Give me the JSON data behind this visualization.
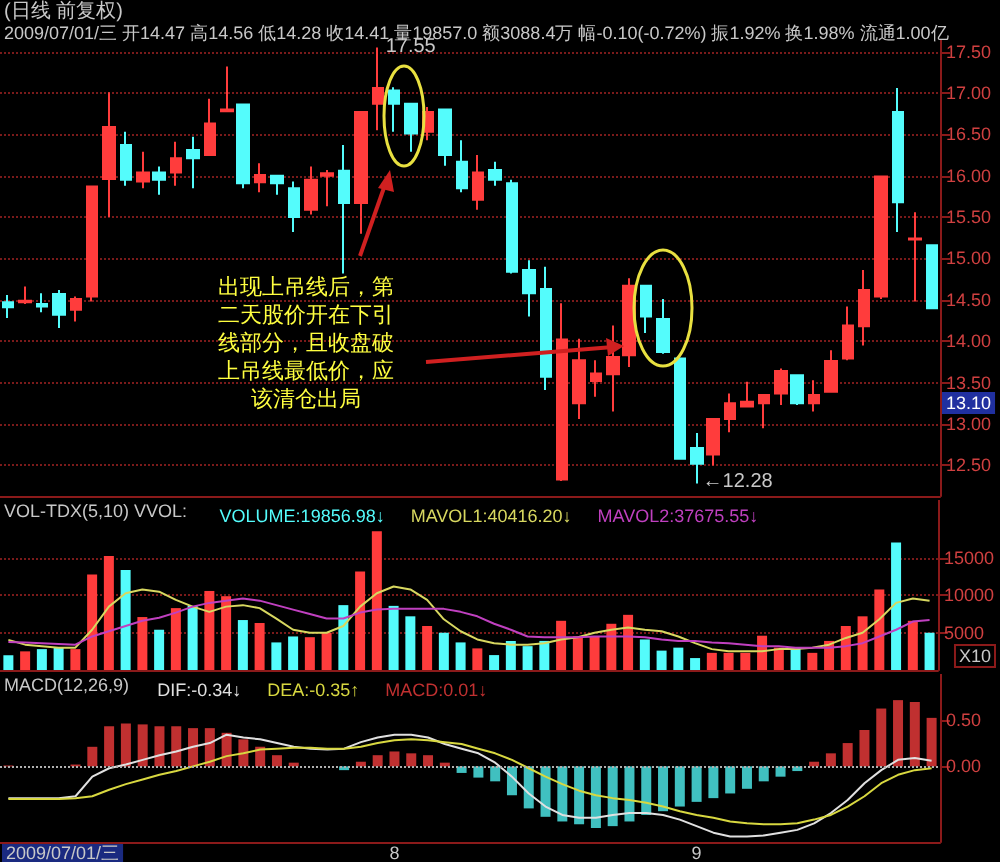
{
  "chart_data": [
    {
      "type": "candlestick",
      "title": "(日线 前复权)",
      "subtitle": "2009/07/01/三 开14.47 高14.56 低14.28 收14.41 量19857.0 额3088.4万 幅-0.10(-0.72%) 振1.92% 换1.98% 流通1.00亿",
      "categories": [
        null,
        null,
        null,
        null,
        null,
        null,
        null,
        null,
        null,
        null,
        null,
        null,
        null,
        null,
        null,
        null,
        null,
        null,
        null,
        null,
        null,
        null,
        null,
        "8",
        null,
        null,
        null,
        null,
        null,
        null,
        null,
        null,
        null,
        null,
        null,
        null,
        null,
        null,
        null,
        null,
        null,
        "9",
        null,
        null,
        null,
        null,
        null,
        null,
        null,
        null,
        null,
        null,
        null,
        null,
        null,
        null
      ],
      "ohlc": [
        [
          14.47,
          14.56,
          14.28,
          14.41
        ],
        [
          14.47,
          14.66,
          14.45,
          14.49
        ],
        [
          14.45,
          14.58,
          14.35,
          14.42
        ],
        [
          14.57,
          14.62,
          14.16,
          14.32
        ],
        [
          14.38,
          14.54,
          14.24,
          14.51
        ],
        [
          14.54,
          15.88,
          14.48,
          15.87
        ],
        [
          15.96,
          17.01,
          15.5,
          16.59
        ],
        [
          16.37,
          16.53,
          15.88,
          15.95
        ],
        [
          15.93,
          16.29,
          15.85,
          16.04
        ],
        [
          16.04,
          16.11,
          15.77,
          15.95
        ],
        [
          16.04,
          16.41,
          15.88,
          16.21
        ],
        [
          16.31,
          16.47,
          15.85,
          16.21
        ],
        [
          16.25,
          16.93,
          16.25,
          16.63
        ],
        [
          16.78,
          17.32,
          16.77,
          16.8
        ],
        [
          16.86,
          16.86,
          15.85,
          15.91
        ],
        [
          15.92,
          16.15,
          15.8,
          16.01
        ],
        [
          16.0,
          16.0,
          15.77,
          15.91
        ],
        [
          15.85,
          15.93,
          15.32,
          15.5
        ],
        [
          15.59,
          16.11,
          15.53,
          15.95
        ],
        [
          16.0,
          16.07,
          15.63,
          16.03
        ],
        [
          16.06,
          16.37,
          14.82,
          15.67
        ],
        [
          15.67,
          16.77,
          15.3,
          16.77
        ],
        [
          16.87,
          17.55,
          16.55,
          17.06
        ],
        [
          17.03,
          17.07,
          16.53,
          16.87
        ],
        [
          16.87,
          16.87,
          16.29,
          16.51
        ],
        [
          16.53,
          16.83,
          16.43,
          16.77
        ],
        [
          16.8,
          16.8,
          16.12,
          16.25
        ],
        [
          16.17,
          16.43,
          15.8,
          15.85
        ],
        [
          15.71,
          16.25,
          15.59,
          16.04
        ],
        [
          16.07,
          16.17,
          15.88,
          15.95
        ],
        [
          15.91,
          15.95,
          14.82,
          14.84
        ],
        [
          14.86,
          14.98,
          14.3,
          14.58
        ],
        [
          14.63,
          14.9,
          13.41,
          13.57
        ],
        [
          12.33,
          14.46,
          12.31,
          14.02
        ],
        [
          13.25,
          14.03,
          13.06,
          13.77
        ],
        [
          13.52,
          13.77,
          13.33,
          13.61
        ],
        [
          13.6,
          14.19,
          13.15,
          13.81
        ],
        [
          13.83,
          14.76,
          13.69,
          14.67
        ],
        [
          14.67,
          14.67,
          14.1,
          14.3
        ],
        [
          14.27,
          14.51,
          13.85,
          13.87
        ],
        [
          13.79,
          13.79,
          12.57,
          12.58
        ],
        [
          12.71,
          12.89,
          12.28,
          12.52
        ],
        [
          12.63,
          13.06,
          12.5,
          13.06
        ],
        [
          13.06,
          13.37,
          12.9,
          13.25
        ],
        [
          13.21,
          13.51,
          13.2,
          13.27
        ],
        [
          13.25,
          13.35,
          12.95,
          13.35
        ],
        [
          13.37,
          13.67,
          13.23,
          13.64
        ],
        [
          13.59,
          13.59,
          13.23,
          13.25
        ],
        [
          13.25,
          13.53,
          13.15,
          13.35
        ],
        [
          13.39,
          13.89,
          13.39,
          13.76
        ],
        [
          13.79,
          14.42,
          13.77,
          14.19
        ],
        [
          14.18,
          14.86,
          13.95,
          14.62
        ],
        [
          14.54,
          15.99,
          14.51,
          15.99
        ],
        [
          16.77,
          17.06,
          15.32,
          15.68
        ],
        [
          15.23,
          15.56,
          14.48,
          15.24
        ],
        [
          15.16,
          15.16,
          14.4,
          14.4
        ]
      ],
      "colors": [
        "#54fcfc",
        "#ff3c3c",
        "#54fcfc",
        "#54fcfc",
        "#ff3c3c",
        "#ff3c3c",
        "#ff3c3c",
        "#54fcfc",
        "#ff3c3c",
        "#54fcfc",
        "#ff3c3c",
        "#54fcfc",
        "#ff3c3c",
        "#ff3c3c",
        "#54fcfc",
        "#ff3c3c",
        "#54fcfc",
        "#54fcfc",
        "#ff3c3c",
        "#ff3c3c",
        "#54fcfc",
        "#ff3c3c",
        "#ff3c3c",
        "#54fcfc",
        "#54fcfc",
        "#ff3c3c",
        "#54fcfc",
        "#54fcfc",
        "#ff3c3c",
        "#54fcfc",
        "#54fcfc",
        "#54fcfc",
        "#54fcfc",
        "#ff3c3c",
        "#ff3c3c",
        "#ff3c3c",
        "#ff3c3c",
        "#ff3c3c",
        "#54fcfc",
        "#54fcfc",
        "#54fcfc",
        "#54fcfc",
        "#ff3c3c",
        "#ff3c3c",
        "#ff3c3c",
        "#ff3c3c",
        "#ff3c3c",
        "#54fcfc",
        "#ff3c3c",
        "#ff3c3c",
        "#ff3c3c",
        "#ff3c3c",
        "#ff3c3c",
        "#54fcfc",
        "#ff3c3c",
        "#54fcfc"
      ],
      "ylim": [
        12.13,
        17.64
      ],
      "yticks": [
        {
          "value": 12.5,
          "label": "12.50"
        },
        {
          "value": 13,
          "label": "13.00"
        },
        {
          "value": 13.5,
          "label": "13.50"
        },
        {
          "value": 14,
          "label": "14.00"
        },
        {
          "value": 14.5,
          "label": "14.50"
        },
        {
          "value": 15,
          "label": "15.00"
        },
        {
          "value": 15.5,
          "label": "15.50"
        },
        {
          "value": 16,
          "label": "16.00"
        },
        {
          "value": 16.5,
          "label": "16.50"
        },
        {
          "value": 17,
          "label": "17.00"
        },
        {
          "value": 17.5,
          "label": "17.50"
        }
      ],
      "grid": "y",
      "tick_labels": "y",
      "annotations": [
        "出现上吊线后，第二天股价开在下引线部分，且收盘破上吊线最低价，应该清仓出局",
        "17.55",
        "←12.28",
        "13.10"
      ]
    },
    {
      "type": "bar",
      "title": "VOL-TDX(5,10) VVOL:",
      "categories": [
        null,
        null,
        null,
        null,
        null,
        null,
        null,
        null,
        null,
        null,
        null,
        null,
        null,
        null,
        null,
        null,
        null,
        null,
        null,
        null,
        null,
        null,
        null,
        "8",
        null,
        null,
        null,
        null,
        null,
        null,
        null,
        null,
        null,
        null,
        null,
        null,
        null,
        null,
        null,
        null,
        null,
        "9",
        null,
        null,
        null,
        null,
        null,
        null,
        null,
        null,
        null,
        null,
        null,
        null,
        null,
        null
      ],
      "series": [
        {
          "name": "VOLUME:19856.98↓",
          "values": [
            1986,
            2500,
            2800,
            3000,
            2800,
            12800,
            15300,
            13400,
            7100,
            5400,
            8300,
            8600,
            10600,
            9900,
            6700,
            6300,
            3700,
            4500,
            4400,
            5000,
            8700,
            13200,
            18600,
            8600,
            7200,
            5900,
            5000,
            3700,
            2900,
            2000,
            3900,
            3200,
            3900,
            6600,
            4500,
            4500,
            6200,
            7400,
            4100,
            2600,
            3000,
            1600,
            2300,
            2300,
            2300,
            4600,
            3000,
            2900,
            2300,
            3900,
            5900,
            7200,
            10800,
            17100,
            6600,
            5000
          ],
          "colors": [
            "#54fcfc",
            "#ff3c3c",
            "#54fcfc",
            "#54fcfc",
            "#ff3c3c",
            "#ff3c3c",
            "#ff3c3c",
            "#54fcfc",
            "#ff3c3c",
            "#54fcfc",
            "#ff3c3c",
            "#54fcfc",
            "#ff3c3c",
            "#ff3c3c",
            "#54fcfc",
            "#ff3c3c",
            "#54fcfc",
            "#54fcfc",
            "#ff3c3c",
            "#ff3c3c",
            "#54fcfc",
            "#ff3c3c",
            "#ff3c3c",
            "#54fcfc",
            "#54fcfc",
            "#ff3c3c",
            "#54fcfc",
            "#54fcfc",
            "#ff3c3c",
            "#54fcfc",
            "#54fcfc",
            "#54fcfc",
            "#54fcfc",
            "#ff3c3c",
            "#ff3c3c",
            "#ff3c3c",
            "#ff3c3c",
            "#ff3c3c",
            "#54fcfc",
            "#54fcfc",
            "#54fcfc",
            "#54fcfc",
            "#ff3c3c",
            "#ff3c3c",
            "#ff3c3c",
            "#ff3c3c",
            "#ff3c3c",
            "#54fcfc",
            "#ff3c3c",
            "#ff3c3c",
            "#ff3c3c",
            "#ff3c3c",
            "#ff3c3c",
            "#54fcfc",
            "#ff3c3c",
            "#54fcfc"
          ]
        },
        {
          "type": "line",
          "name": "MAVOL1:40416.20↓",
          "color": "#d8d860",
          "values": [
            4042,
            3400,
            3200,
            3000,
            3000,
            5400,
            8500,
            10300,
            10800,
            10500,
            9400,
            8500,
            7800,
            8500,
            8700,
            8300,
            6900,
            5400,
            5000,
            5000,
            5900,
            8500,
            10300,
            11200,
            10800,
            9400,
            6800,
            5200,
            4100,
            3600,
            3400,
            3400,
            3600,
            4100,
            4400,
            5000,
            5400,
            5700,
            5400,
            5200,
            4500,
            3600,
            2800,
            2500,
            2500,
            2500,
            2800,
            2800,
            3000,
            3400,
            4300,
            5000,
            6800,
            9000,
            9600,
            9300
          ]
        },
        {
          "type": "line",
          "name": "MAVOL2:37675.55↓",
          "color": "#c040c0",
          "values": [
            3768,
            3700,
            3600,
            3500,
            3400,
            4500,
            5200,
            5900,
            6600,
            7000,
            7700,
            8500,
            9000,
            9300,
            9600,
            9300,
            8700,
            8100,
            7500,
            6900,
            6900,
            7700,
            8100,
            8200,
            8200,
            8200,
            8200,
            7800,
            7200,
            6200,
            5400,
            4500,
            4400,
            4400,
            4400,
            4500,
            4500,
            4500,
            4400,
            4100,
            3900,
            3900,
            3700,
            3600,
            3400,
            3200,
            3200,
            3000,
            3000,
            3000,
            3200,
            3600,
            4500,
            5400,
            6500,
            6700
          ]
        }
      ],
      "ylim": [
        0,
        22800
      ],
      "yticks": [
        5000,
        10000,
        15000
      ],
      "grid": "y",
      "tick_labels": "y",
      "legend": "top left",
      "annotations": [
        "X10"
      ]
    },
    {
      "type": "bar",
      "title": "MACD(12,26,9)",
      "categories": [
        null,
        null,
        null,
        null,
        null,
        null,
        null,
        null,
        null,
        null,
        null,
        null,
        null,
        null,
        null,
        null,
        null,
        null,
        null,
        null,
        null,
        null,
        null,
        "8",
        null,
        null,
        null,
        null,
        null,
        null,
        null,
        null,
        null,
        null,
        null,
        null,
        null,
        null,
        null,
        null,
        null,
        "9",
        null,
        null,
        null,
        null,
        null,
        null,
        null,
        null,
        null,
        null,
        null,
        null,
        null,
        null
      ],
      "series": [
        {
          "type": "line",
          "name": "DIF:-0.34↓",
          "color": "#e0e0e0",
          "values": [
            -0.34,
            -0.34,
            -0.34,
            -0.34,
            -0.32,
            -0.11,
            -0.02,
            0.02,
            0.07,
            0.12,
            0.16,
            0.21,
            0.25,
            0.34,
            0.31,
            0.29,
            0.25,
            0.21,
            0.19,
            0.18,
            0.19,
            0.26,
            0.31,
            0.34,
            0.34,
            0.31,
            0.24,
            0.19,
            0.14,
            0.04,
            -0.11,
            -0.29,
            -0.43,
            -0.52,
            -0.55,
            -0.55,
            -0.52,
            -0.5,
            -0.5,
            -0.52,
            -0.57,
            -0.64,
            -0.71,
            -0.75,
            -0.75,
            -0.74,
            -0.71,
            -0.68,
            -0.61,
            -0.5,
            -0.36,
            -0.18,
            -0.04,
            0.07,
            0.09,
            0.06
          ]
        },
        {
          "type": "line",
          "name": "DEA:-0.35↑",
          "color": "#d8d840",
          "values": [
            -0.35,
            -0.35,
            -0.35,
            -0.35,
            -0.34,
            -0.32,
            -0.25,
            -0.19,
            -0.14,
            -0.09,
            -0.05,
            0,
            0.05,
            0.11,
            0.14,
            0.18,
            0.19,
            0.2,
            0.2,
            0.19,
            0.19,
            0.21,
            0.25,
            0.28,
            0.29,
            0.28,
            0.26,
            0.24,
            0.19,
            0.14,
            0.07,
            -0.02,
            -0.11,
            -0.19,
            -0.26,
            -0.31,
            -0.34,
            -0.36,
            -0.39,
            -0.43,
            -0.48,
            -0.52,
            -0.55,
            -0.59,
            -0.61,
            -0.62,
            -0.62,
            -0.61,
            -0.57,
            -0.52,
            -0.43,
            -0.32,
            -0.18,
            -0.09,
            -0.04,
            -0.02
          ]
        },
        {
          "name": "MACD:0.01↓",
          "values": [
            0.01,
            0,
            0,
            0,
            0.02,
            0.21,
            0.43,
            0.46,
            0.45,
            0.43,
            0.43,
            0.41,
            0.41,
            0.36,
            0.29,
            0.21,
            0.12,
            0.04,
            0,
            0,
            -0.04,
            0.05,
            0.12,
            0.16,
            0.14,
            0.12,
            0.04,
            -0.07,
            -0.12,
            -0.16,
            -0.31,
            -0.45,
            -0.54,
            -0.59,
            -0.62,
            -0.66,
            -0.64,
            -0.59,
            -0.52,
            -0.48,
            -0.43,
            -0.38,
            -0.34,
            -0.29,
            -0.24,
            -0.16,
            -0.11,
            -0.05,
            0.05,
            0.14,
            0.25,
            0.39,
            0.62,
            0.71,
            0.69,
            0.52
          ],
          "colors": [
            "#c03030",
            "#c03030",
            "#c03030",
            "#c03030",
            "#c03030",
            "#c03030",
            "#c03030",
            "#c03030",
            "#c03030",
            "#c03030",
            "#c03030",
            "#c03030",
            "#c03030",
            "#c03030",
            "#c03030",
            "#c03030",
            "#c03030",
            "#c03030",
            "#c03030",
            "#c03030",
            "#40c0c0",
            "#c03030",
            "#c03030",
            "#c03030",
            "#c03030",
            "#c03030",
            "#c03030",
            "#40c0c0",
            "#40c0c0",
            "#40c0c0",
            "#40c0c0",
            "#40c0c0",
            "#40c0c0",
            "#40c0c0",
            "#40c0c0",
            "#40c0c0",
            "#40c0c0",
            "#40c0c0",
            "#40c0c0",
            "#40c0c0",
            "#40c0c0",
            "#40c0c0",
            "#40c0c0",
            "#40c0c0",
            "#40c0c0",
            "#40c0c0",
            "#40c0c0",
            "#40c0c0",
            "#c03030",
            "#c03030",
            "#c03030",
            "#c03030",
            "#c03030",
            "#c03030",
            "#c03030",
            "#c03030"
          ]
        }
      ],
      "ylim": [
        -0.81,
        0.99
      ],
      "yticks": [
        {
          "value": 0,
          "label": "0.00"
        },
        {
          "value": 0.5,
          "label": "0.50"
        }
      ],
      "legend": "top left",
      "ref_lines": [
        {
          "axis": "y",
          "value": 0,
          "color": "#b0b0b0",
          "line_style": "dotted"
        }
      ],
      "annotations": [
        "2009/07/01/三"
      ]
    }
  ]
}
